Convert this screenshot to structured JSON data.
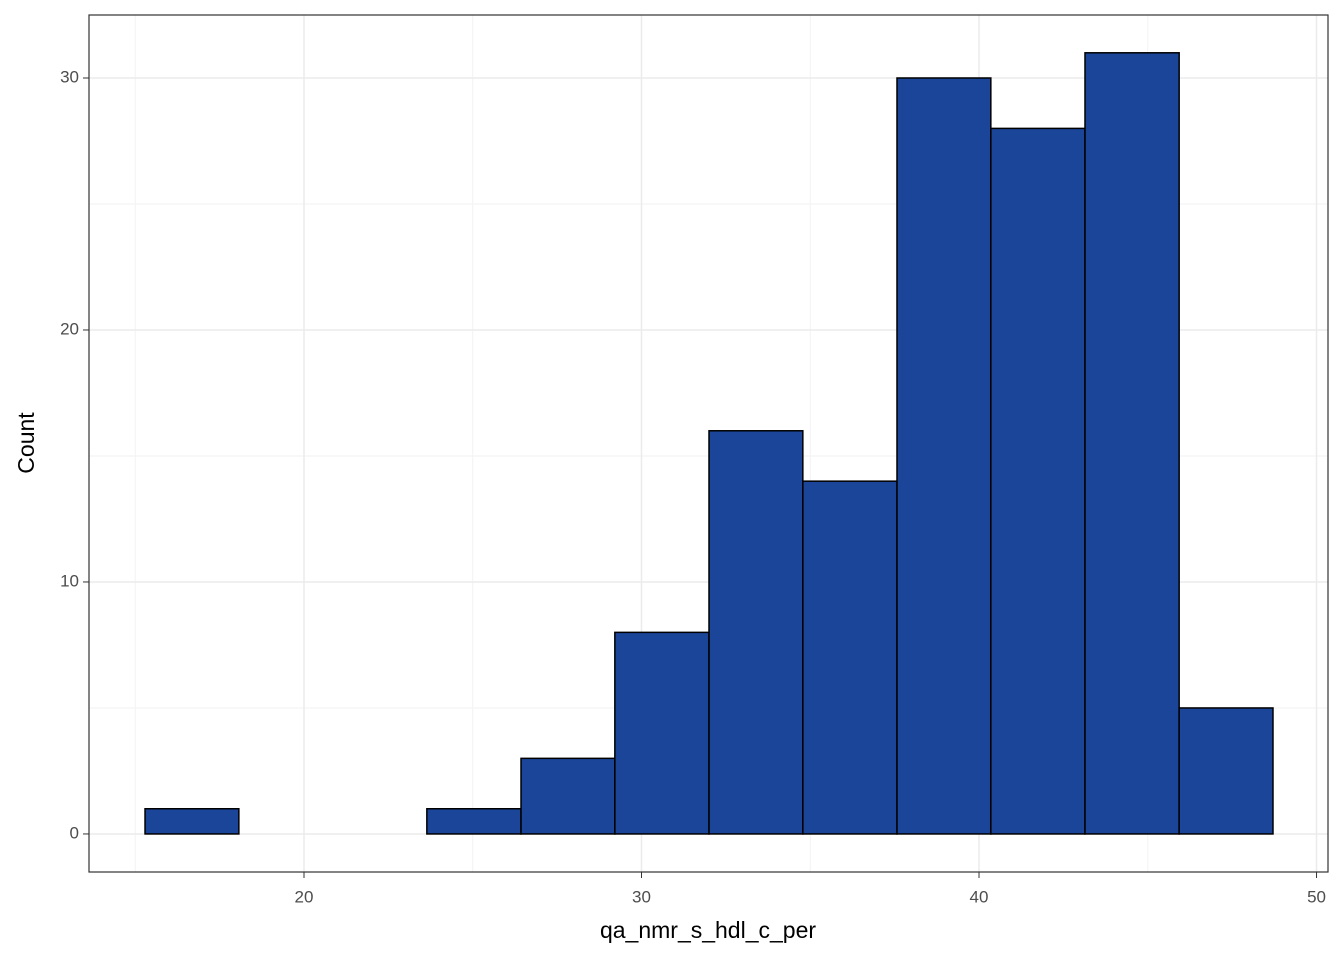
{
  "chart_data": {
    "type": "histogram",
    "x_label": "qa_nmr_s_hdl_c_per",
    "y_label": "Count",
    "bins": [
      15.29,
      18.07,
      20.86,
      23.64,
      26.43,
      29.21,
      32.0,
      34.78,
      37.57,
      40.35,
      43.14,
      45.93,
      48.71
    ],
    "counts": [
      1,
      0,
      0,
      1,
      3,
      8,
      16,
      14,
      30,
      28,
      31,
      5
    ],
    "color": "#1a4598",
    "edge_color": "#000000",
    "xlim": [
      13.63,
      50.34
    ],
    "ylim": [
      -1.51,
      32.5
    ],
    "xticks": [
      20,
      30,
      40,
      50
    ],
    "yticks": [
      0,
      10,
      20,
      30
    ],
    "x_minor_grid": [
      15,
      25,
      35,
      45
    ],
    "y_minor_grid": [
      5,
      15,
      25
    ],
    "grid": true
  }
}
